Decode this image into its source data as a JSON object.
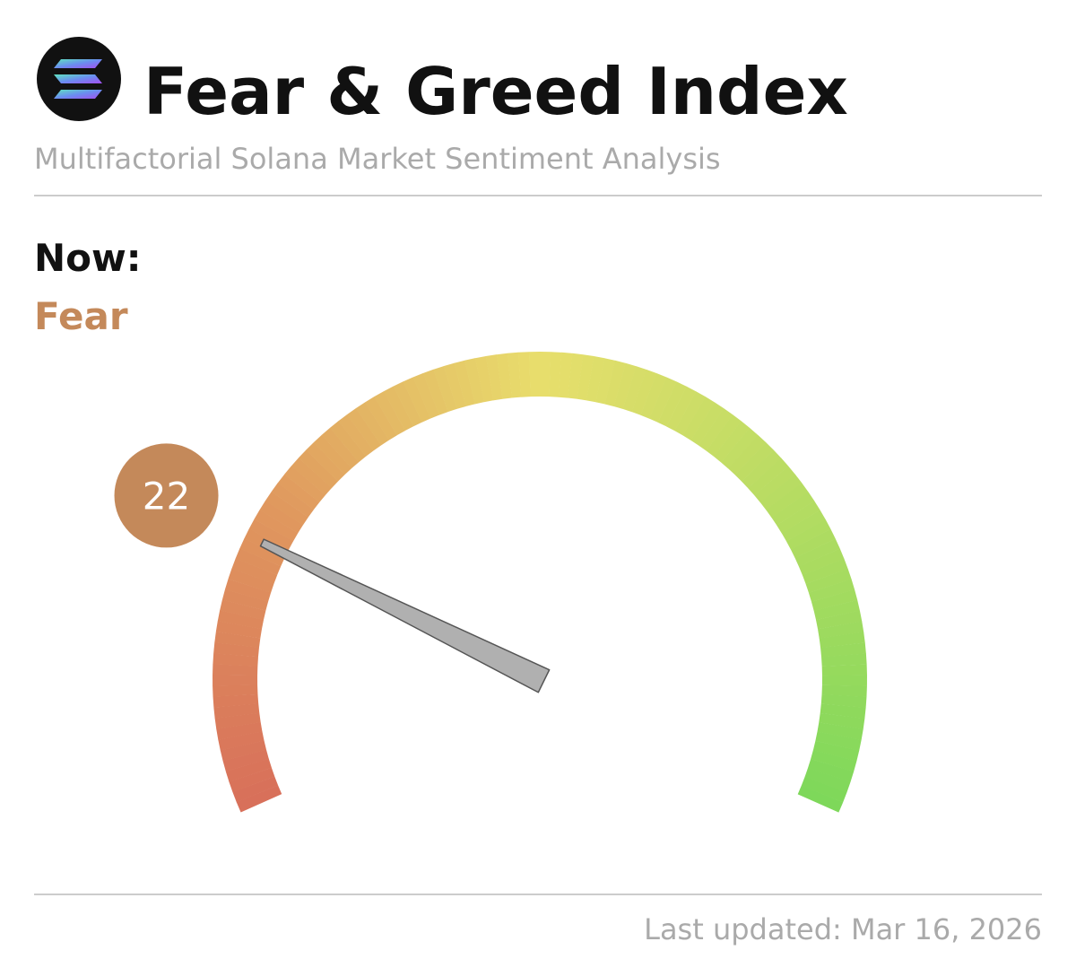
{
  "chart_data": {
    "type": "gauge",
    "title": "Fear & Greed Index",
    "subtitle": "Multifactorial Solana Market Sentiment Analysis",
    "now_label": "Now:",
    "status": "Fear",
    "value": 22,
    "color": "#c4895a",
    "ylim": [
      0,
      100
    ],
    "gradient": [
      "#d8705a",
      "#e0985e",
      "#e8de6c",
      "#b4dc62",
      "#7ed85a"
    ],
    "footer": "Last updated: Mar 16, 2026"
  }
}
